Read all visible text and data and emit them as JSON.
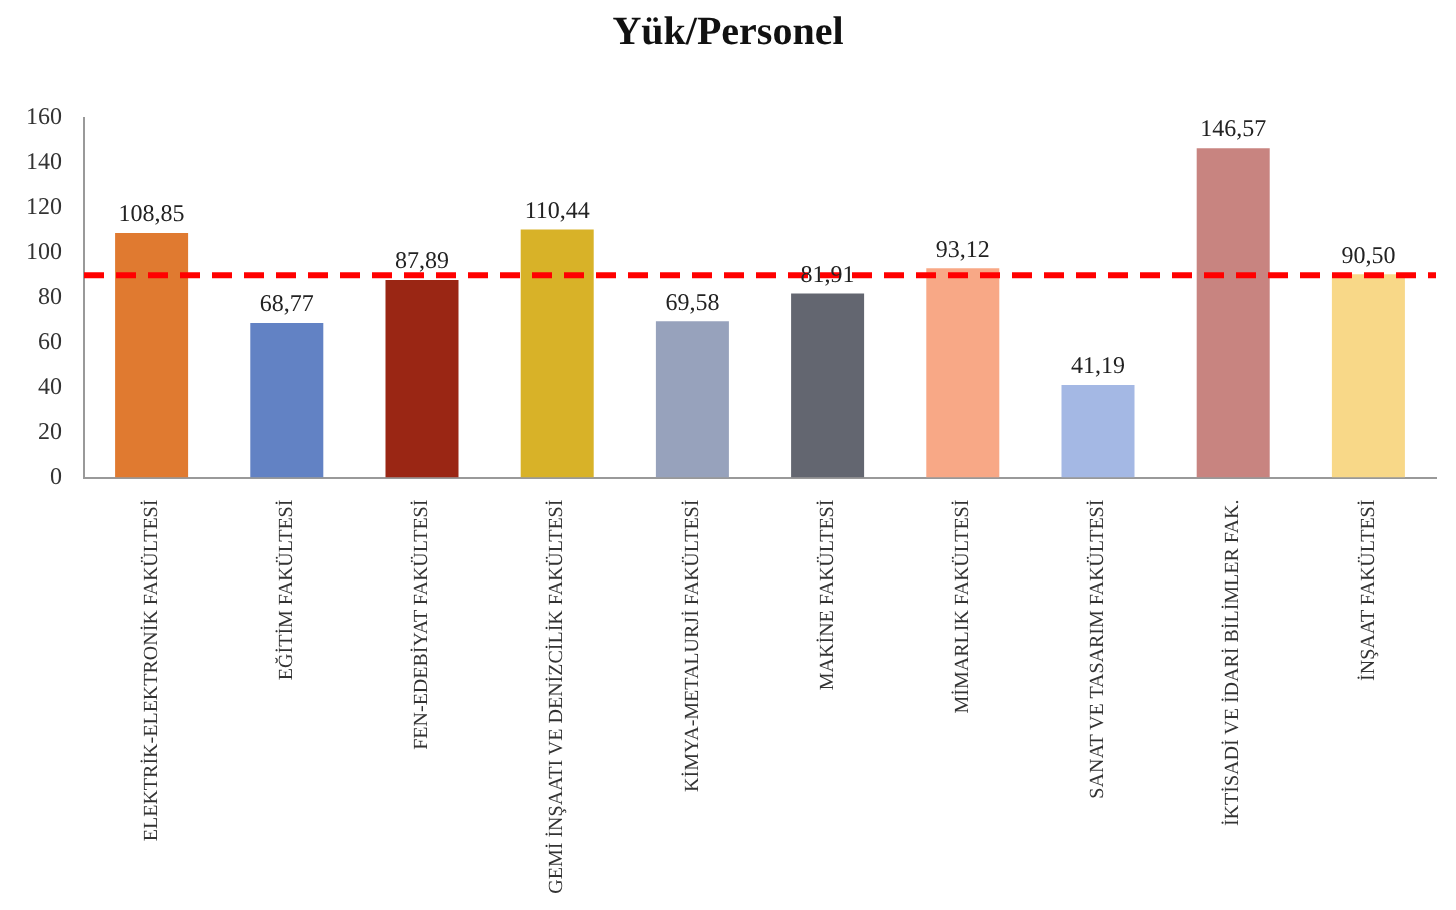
{
  "chart_data": {
    "type": "bar",
    "title": "Yük/Personel",
    "categories": [
      "ELEKTRİK-ELEKTRONİK FAKÜLTESİ",
      "EĞİTİM FAKÜLTESİ",
      "FEN-EDEBİYAT FAKÜLTESİ",
      "GEMİ İNŞAATI VE DENİZCİLİK FAKÜLTESİ",
      "KİMYA-METALURJİ FAKÜLTESİ",
      "MAKİNE FAKÜLTESİ",
      "MİMARLIK FAKÜLTESİ",
      "SANAT VE TASARIM FAKÜLTESİ",
      "İKTİSADİ VE İDARİ BİLİMLER FAK.",
      "İNŞAAT FAKÜLTESİ"
    ],
    "values": [
      108.85,
      68.77,
      87.89,
      110.44,
      69.58,
      81.91,
      93.12,
      41.19,
      146.57,
      90.5
    ],
    "value_labels": [
      "108,85",
      "68,77",
      "87,89",
      "110,44",
      "69,58",
      "81,91",
      "93,12",
      "41,19",
      "146,57",
      "90,50"
    ],
    "colors": [
      "#e07a30",
      "#6282c4",
      "#9a2614",
      "#d8b228",
      "#97a2bc",
      "#636670",
      "#f8a886",
      "#a4b8e4",
      "#c88480",
      "#f8d888"
    ],
    "ylim": [
      0,
      160
    ],
    "yticks": [
      0,
      20,
      40,
      60,
      80,
      100,
      120,
      140,
      160
    ],
    "ref_lines": [
      {
        "axis": "y",
        "value": 90,
        "color": "#ff0000",
        "line_style": "dashed"
      }
    ]
  }
}
